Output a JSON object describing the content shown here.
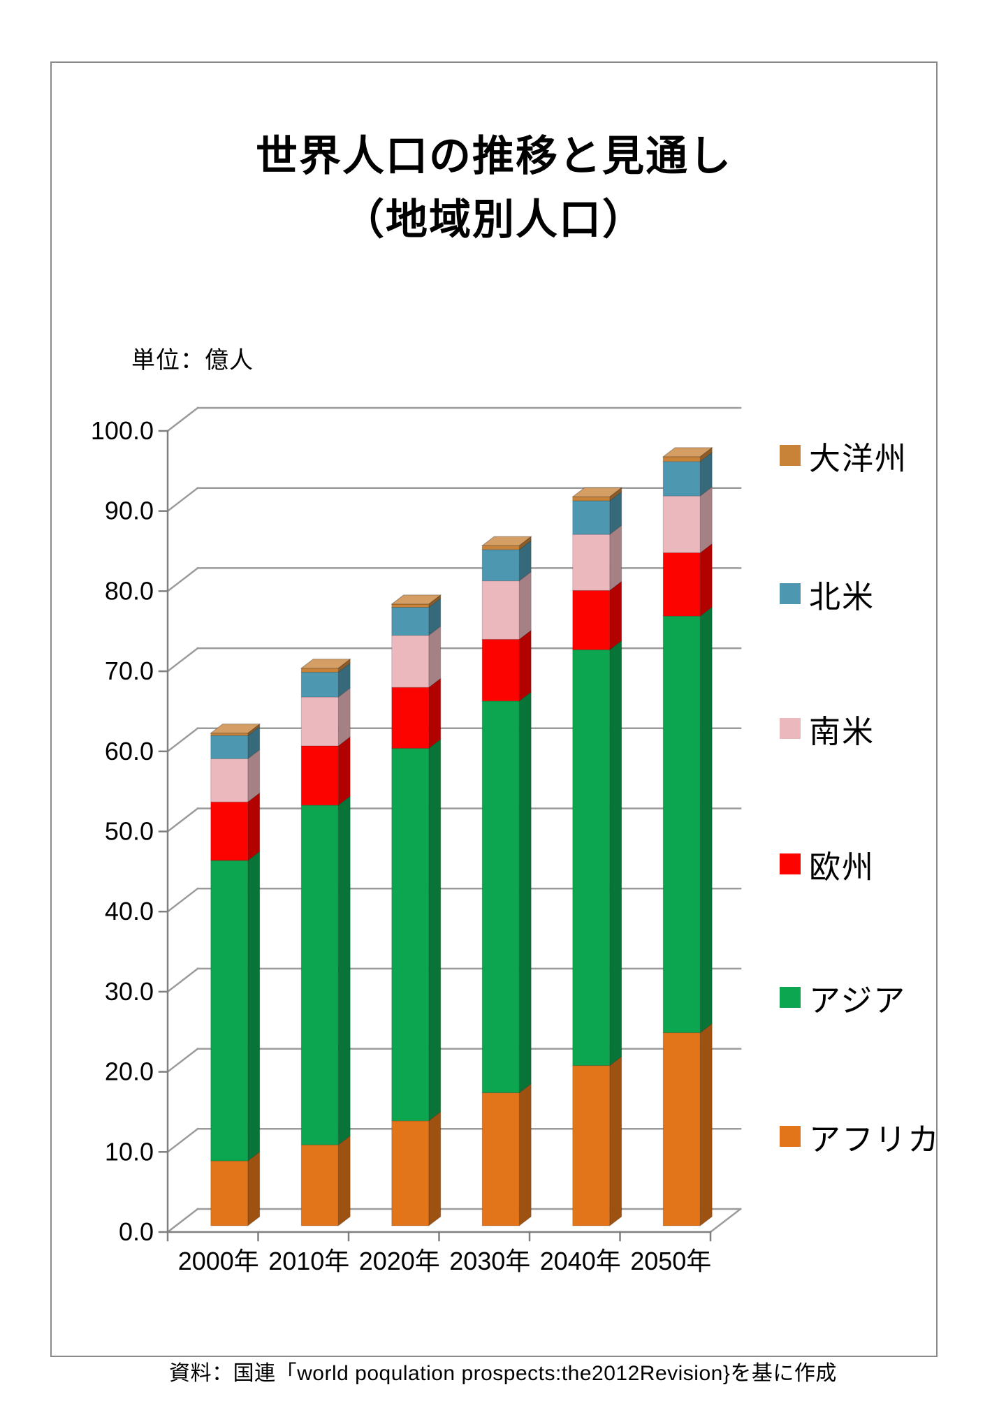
{
  "page": {
    "title_line1": "世界人口の推移と見通し",
    "title_line2": "（地域別人口）",
    "unit_label": "単位：億人",
    "source_note": "資料：国連「world poqulation prospects:the2012Revision}を基に作成"
  },
  "chart_data": {
    "type": "bar",
    "subtype": "stacked-3d-column",
    "title": "世界人口の推移と見通し（地域別人口）",
    "unit": "億人",
    "xlabel": "",
    "ylabel": "単位：億人",
    "ylim": [
      0,
      100
    ],
    "ytick_step": 10,
    "ytick_labels": [
      "0.0",
      "10.0",
      "20.0",
      "30.0",
      "40.0",
      "50.0",
      "60.0",
      "70.0",
      "80.0",
      "90.0",
      "100.0"
    ],
    "grid": true,
    "legend_position": "right",
    "categories": [
      "2000年",
      "2010年",
      "2020年",
      "2030年",
      "2040年",
      "2050年"
    ],
    "series": [
      {
        "key": "africa",
        "name": "アフリカ",
        "color": "#E2751A",
        "values": [
          8.1,
          10.1,
          13.1,
          16.6,
          20.0,
          24.1
        ]
      },
      {
        "key": "asia",
        "name": "アジア",
        "color": "#0CA650",
        "values": [
          37.5,
          42.4,
          46.5,
          48.9,
          51.9,
          52.0
        ]
      },
      {
        "key": "europe",
        "name": "欧州",
        "color": "#FD0300",
        "values": [
          7.3,
          7.4,
          7.6,
          7.7,
          7.4,
          7.9
        ]
      },
      {
        "key": "south-america",
        "name": "南米",
        "color": "#EBB8BE",
        "values": [
          5.4,
          6.1,
          6.5,
          7.3,
          7.0,
          7.1
        ]
      },
      {
        "key": "north-america",
        "name": "北米",
        "color": "#4D97B0",
        "values": [
          2.9,
          3.1,
          3.5,
          3.9,
          4.2,
          4.3
        ]
      },
      {
        "key": "oceania",
        "name": "大洋州",
        "color": "#C98338",
        "values": [
          0.3,
          0.5,
          0.4,
          0.5,
          0.5,
          0.6
        ]
      }
    ],
    "totals": [
      61.5,
      69.6,
      77.6,
      84.9,
      91.0,
      96.0
    ],
    "legend_order_top_to_bottom": [
      "oceania",
      "north-america",
      "south-america",
      "europe",
      "asia",
      "africa"
    ],
    "colors": {
      "gridline": "#9B9B9B",
      "axis": "#7F7F7F",
      "frame_border": "#8A8A8A",
      "text": "#000000",
      "background": "#FFFFFF"
    }
  }
}
